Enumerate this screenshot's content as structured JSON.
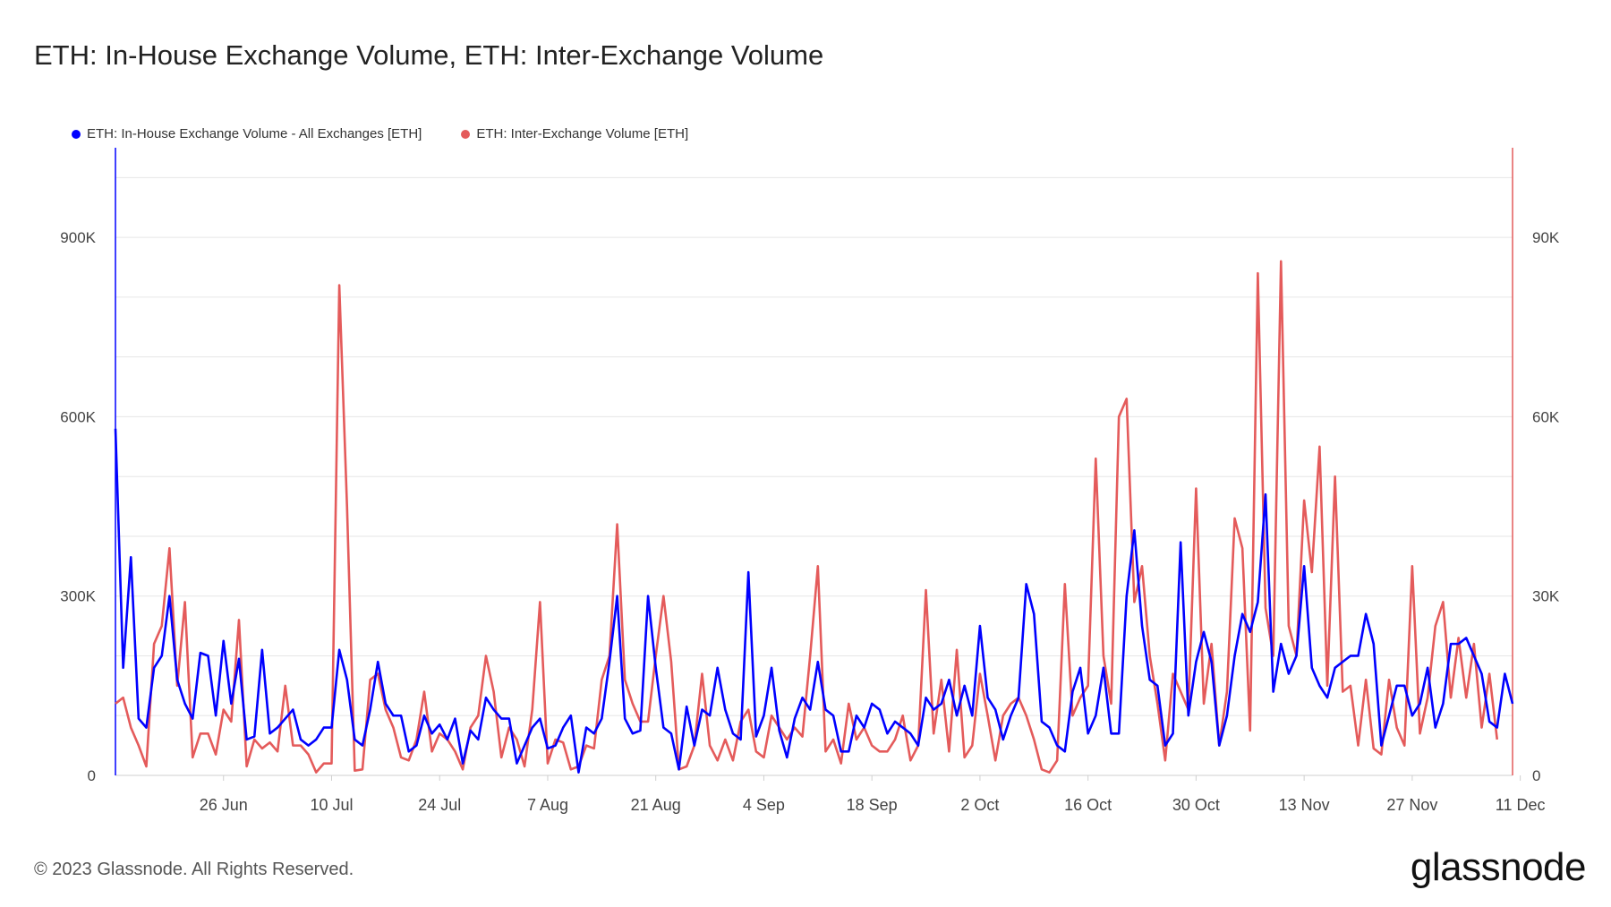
{
  "title": "ETH: In-House Exchange Volume, ETH: Inter-Exchange Volume",
  "footer": "© 2023 Glassnode. All Rights Reserved.",
  "brand": "glassnode",
  "chart_data": {
    "type": "line",
    "title": "ETH: In-House Exchange Volume, ETH: Inter-Exchange Volume",
    "legend_position": "top-left",
    "grid": true,
    "x_ticks": [
      "26 Jun",
      "10 Jul",
      "24 Jul",
      "7 Aug",
      "21 Aug",
      "4 Sep",
      "18 Sep",
      "2 Oct",
      "16 Oct",
      "30 Oct",
      "13 Nov",
      "27 Nov",
      "11 Dec"
    ],
    "x_tick_index": [
      14,
      28,
      42,
      56,
      70,
      84,
      98,
      112,
      126,
      140,
      154,
      168,
      182
    ],
    "y_left": {
      "ticks": [
        "0",
        "300K",
        "600K",
        "900K"
      ],
      "tick_values": [
        0,
        300000,
        600000,
        900000
      ],
      "range": [
        0,
        1050000
      ]
    },
    "y_right": {
      "ticks": [
        "0",
        "30K",
        "60K",
        "90K"
      ],
      "tick_values": [
        0,
        30000,
        60000,
        90000
      ],
      "range": [
        0,
        105000
      ]
    },
    "series": [
      {
        "name": "ETH: In-House Exchange Volume - All Exchanges [ETH]",
        "axis": "left",
        "color": "#0000ff",
        "values": [
          580000,
          180000,
          365000,
          95000,
          80000,
          180000,
          200000,
          300000,
          160000,
          120000,
          95000,
          205000,
          200000,
          100000,
          225000,
          120000,
          195000,
          60000,
          65000,
          210000,
          70000,
          80000,
          95000,
          110000,
          60000,
          50000,
          60000,
          80000,
          80000,
          210000,
          160000,
          60000,
          50000,
          110000,
          190000,
          120000,
          100000,
          100000,
          40000,
          50000,
          100000,
          70000,
          85000,
          60000,
          95000,
          20000,
          75000,
          60000,
          130000,
          110000,
          95000,
          95000,
          20000,
          50000,
          80000,
          95000,
          45000,
          50000,
          80000,
          100000,
          5000,
          80000,
          70000,
          95000,
          190000,
          300000,
          95000,
          70000,
          75000,
          300000,
          180000,
          80000,
          70000,
          10000,
          115000,
          50000,
          110000,
          100000,
          180000,
          110000,
          70000,
          60000,
          340000,
          65000,
          100000,
          180000,
          75000,
          30000,
          95000,
          130000,
          110000,
          190000,
          110000,
          100000,
          40000,
          40000,
          100000,
          80000,
          120000,
          110000,
          70000,
          90000,
          80000,
          70000,
          50000,
          130000,
          110000,
          120000,
          160000,
          100000,
          150000,
          100000,
          250000,
          130000,
          110000,
          60000,
          100000,
          130000,
          320000,
          270000,
          90000,
          80000,
          50000,
          40000,
          140000,
          180000,
          70000,
          100000,
          180000,
          70000,
          70000,
          300000,
          410000,
          250000,
          160000,
          150000,
          50000,
          70000,
          390000,
          100000,
          190000,
          240000,
          190000,
          50000,
          100000,
          200000,
          270000,
          240000,
          290000,
          470000,
          140000,
          220000,
          170000,
          200000,
          350000,
          180000,
          150000,
          130000,
          180000,
          190000,
          200000,
          200000,
          270000,
          220000,
          50000,
          100000,
          150000,
          150000,
          100000,
          120000,
          180000,
          80000,
          120000,
          220000,
          220000,
          230000,
          200000,
          170000,
          90000,
          80000,
          170000,
          120000
        ]
      },
      {
        "name": "ETH: Inter-Exchange Volume [ETH]",
        "axis": "right",
        "color": "#e45b5b",
        "values": [
          12000,
          13000,
          8000,
          5000,
          1500,
          22000,
          25000,
          38000,
          15000,
          29000,
          3000,
          7000,
          7000,
          3500,
          11000,
          9000,
          26000,
          1500,
          6000,
          4500,
          5500,
          4000,
          15000,
          5000,
          5000,
          3500,
          500,
          2000,
          2000,
          82000,
          45000,
          800,
          1000,
          16000,
          17000,
          11000,
          8000,
          3000,
          2500,
          6000,
          14000,
          4000,
          7000,
          6000,
          4000,
          1000,
          8000,
          10000,
          20000,
          14000,
          3000,
          8000,
          6000,
          1500,
          11000,
          29000,
          2000,
          6000,
          5500,
          1000,
          1500,
          5000,
          4500,
          16000,
          20000,
          42000,
          16000,
          12000,
          9000,
          9000,
          20000,
          30000,
          19000,
          1000,
          1500,
          5000,
          17000,
          5000,
          2500,
          6000,
          2500,
          9000,
          11000,
          4000,
          3000,
          10000,
          8000,
          6000,
          8000,
          6500,
          20000,
          35000,
          4000,
          6000,
          2000,
          12000,
          6000,
          8000,
          5000,
          4000,
          4000,
          6000,
          10000,
          2500,
          5000,
          31000,
          7000,
          16000,
          4000,
          21000,
          3000,
          5000,
          17000,
          10000,
          2500,
          10000,
          12000,
          13000,
          10000,
          6000,
          1000,
          500,
          2500,
          32000,
          10000,
          13000,
          15000,
          53000,
          20000,
          12000,
          60000,
          63000,
          29000,
          35000,
          20000,
          12000,
          2500,
          17000,
          14000,
          11000,
          48000,
          12000,
          22000,
          5000,
          14000,
          43000,
          38000,
          7500,
          84000,
          28000,
          20000,
          86000,
          25000,
          20000,
          46000,
          34000,
          55000,
          15000,
          50000,
          14000,
          15000,
          5000,
          16000,
          4500,
          3500,
          16000,
          8000,
          5000,
          35000,
          7000,
          13000,
          25000,
          29000,
          13000,
          23000,
          13000,
          22000,
          8000,
          17000,
          6000
        ]
      }
    ]
  }
}
